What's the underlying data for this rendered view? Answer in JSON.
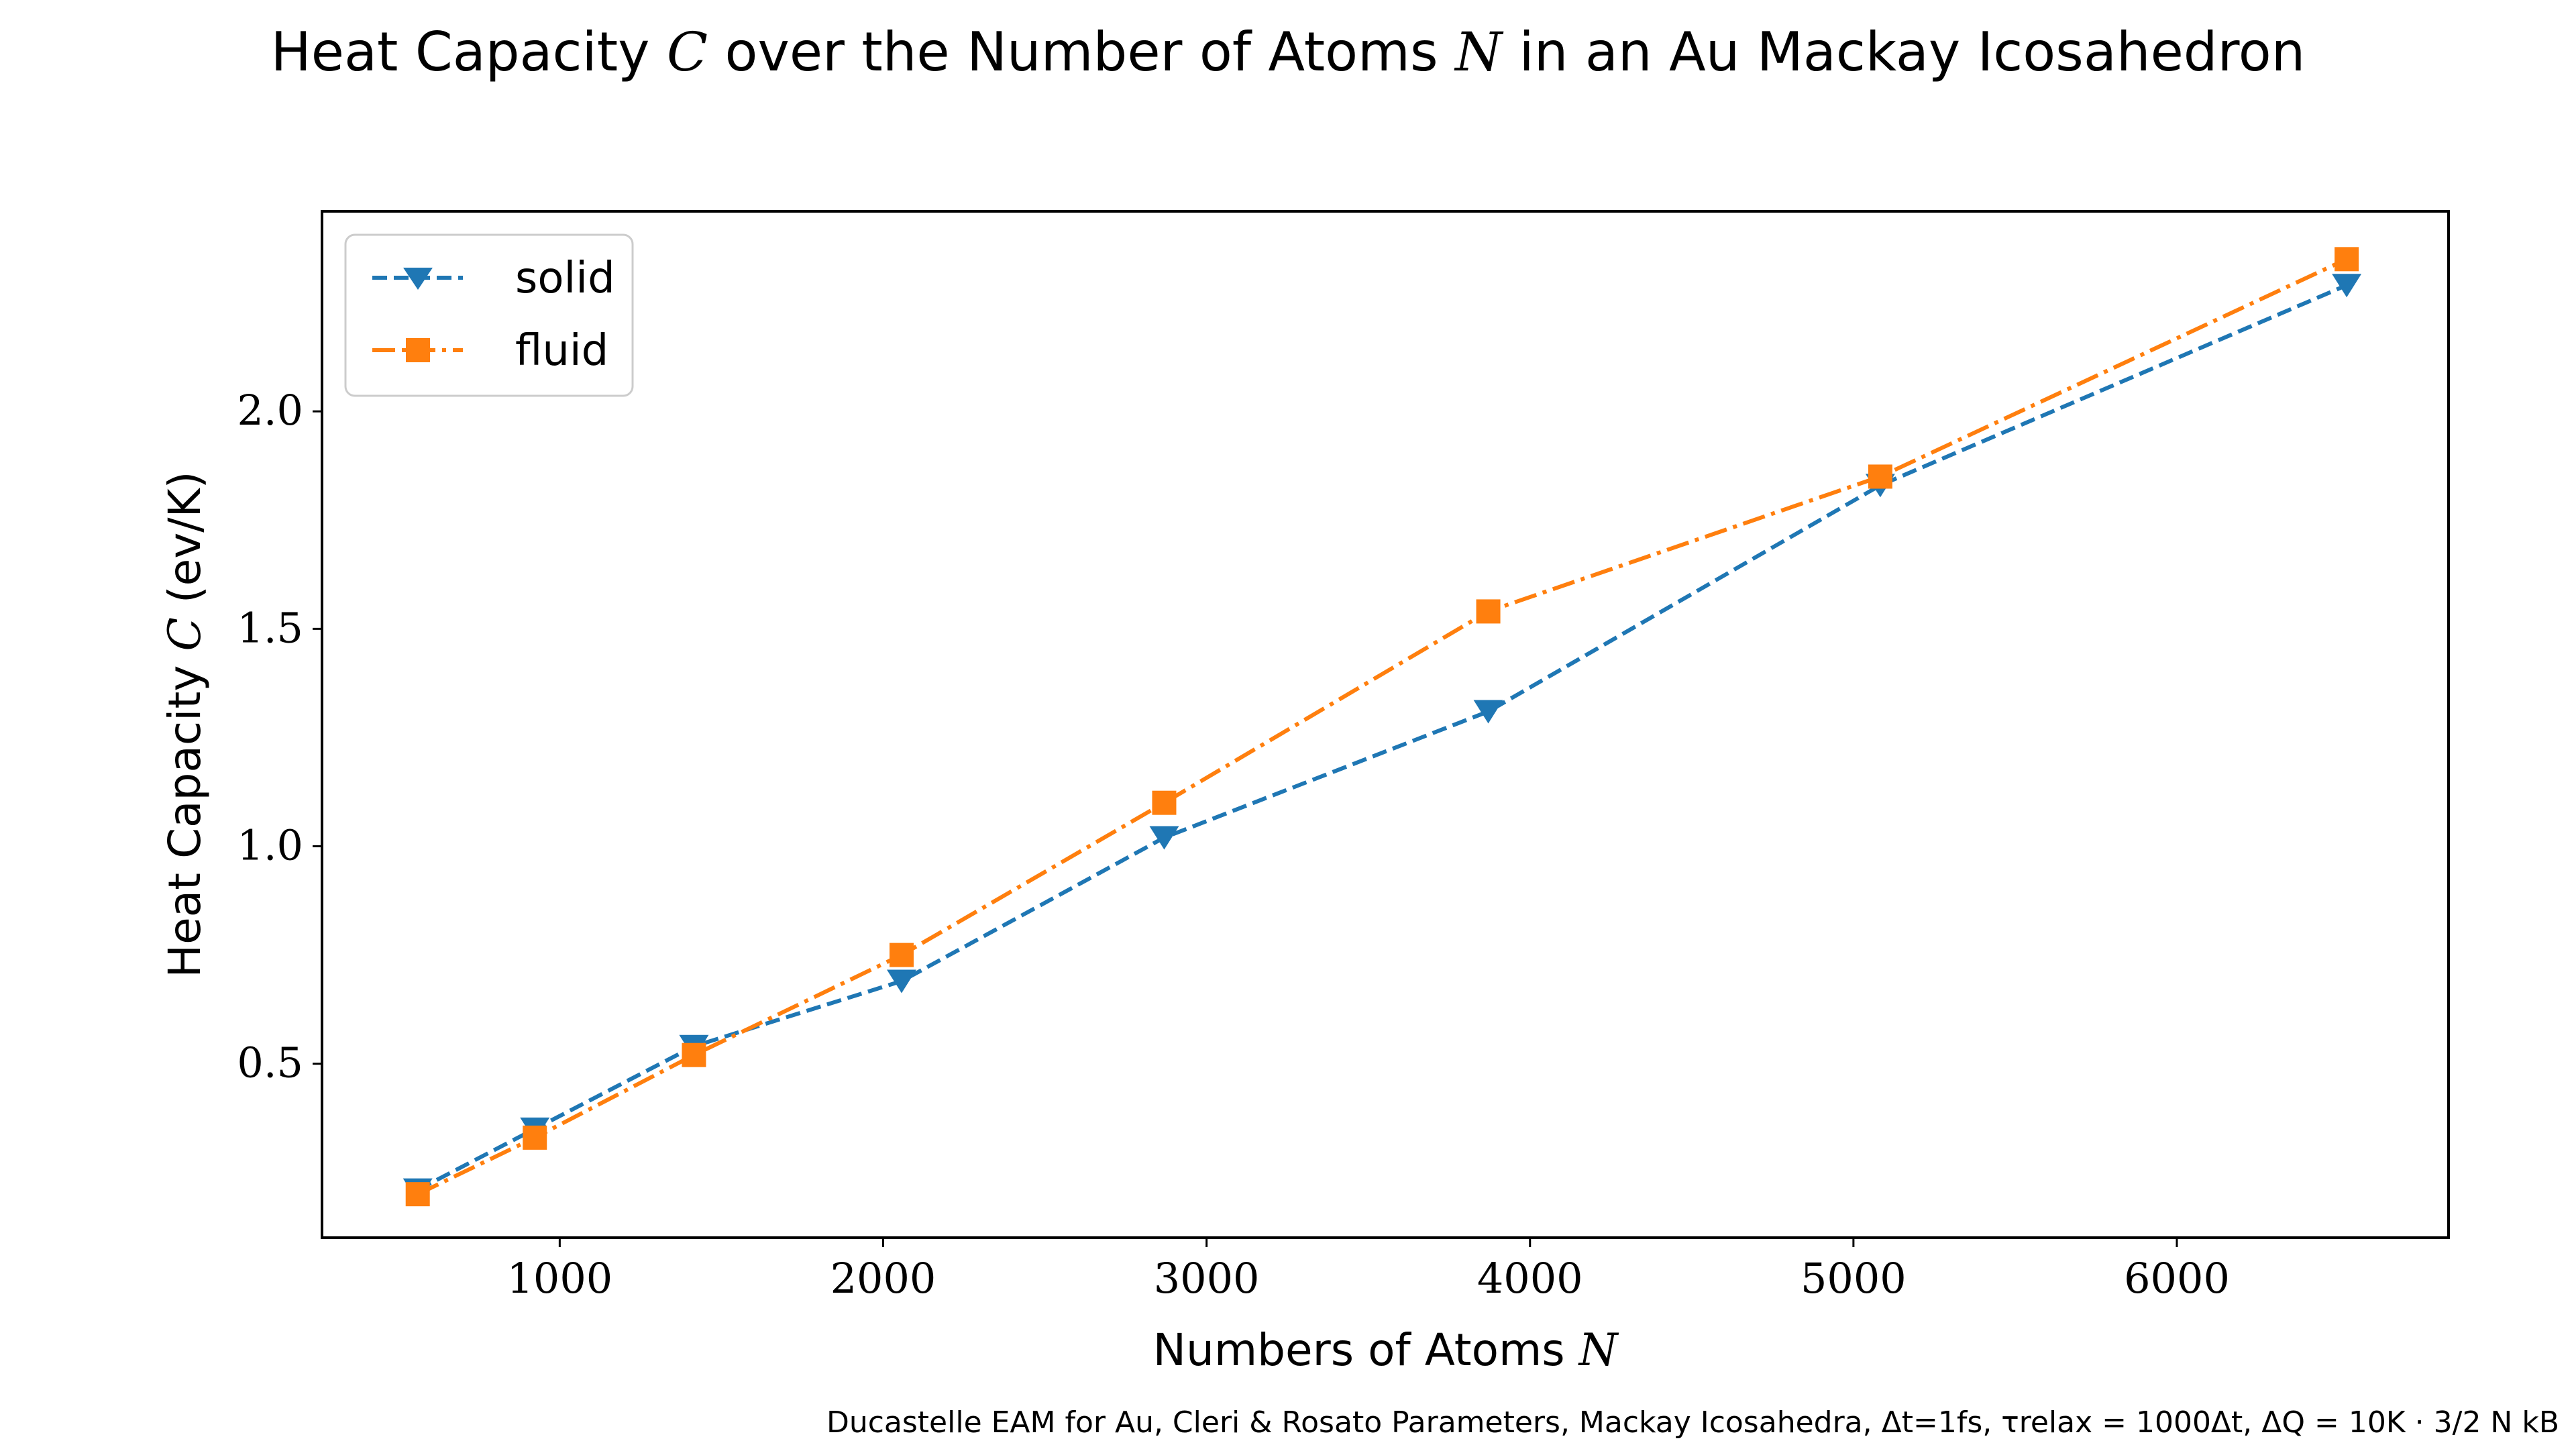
{
  "chart_data": {
    "type": "line",
    "title": {
      "pre": "Heat Capacity ",
      "var1": "C",
      "mid": " over the Number of Atoms ",
      "var2": "N",
      "post": " in an Au Mackay Icosahedron"
    },
    "xlabel": {
      "text": "Numbers of Atoms ",
      "var": "N"
    },
    "ylabel": {
      "pre": "Heat Capacity ",
      "var": "C",
      "post": " (ev/K)"
    },
    "xlim": [
      265,
      6840
    ],
    "ylim": [
      0.1,
      2.46
    ],
    "xticks": [
      1000,
      2000,
      3000,
      4000,
      5000,
      6000
    ],
    "xtick_labels": [
      "1000",
      "2000",
      "3000",
      "4000",
      "5000",
      "6000"
    ],
    "yticks": [
      0.5,
      1.0,
      1.5,
      2.0
    ],
    "ytick_labels": [
      "0.5",
      "1.0",
      "1.5",
      "2.0"
    ],
    "grid": false,
    "legend_position": "upper-left",
    "series": [
      {
        "name": "solid",
        "color": "#1f77b4",
        "line_style": "dashed",
        "marker": "triangle-down",
        "x": [
          561,
          923,
          1415,
          2057,
          2869,
          3871,
          5083,
          6525
        ],
        "y": [
          0.21,
          0.35,
          0.54,
          0.69,
          1.02,
          1.31,
          1.83,
          2.29
        ]
      },
      {
        "name": "fluid",
        "color": "#ff7f0e",
        "line_style": "dashdot",
        "marker": "square",
        "x": [
          561,
          923,
          1415,
          2057,
          2869,
          3871,
          5083,
          6525
        ],
        "y": [
          0.2,
          0.33,
          0.52,
          0.75,
          1.1,
          1.54,
          1.85,
          2.35
        ]
      }
    ],
    "footnote": "Ducastelle EAM for Au, Cleri & Rosato Parameters, Mackay Icosahedra, Δt=1fs, τrelax = 1000Δt, ΔQ = 10K · 3/2 N kB"
  }
}
